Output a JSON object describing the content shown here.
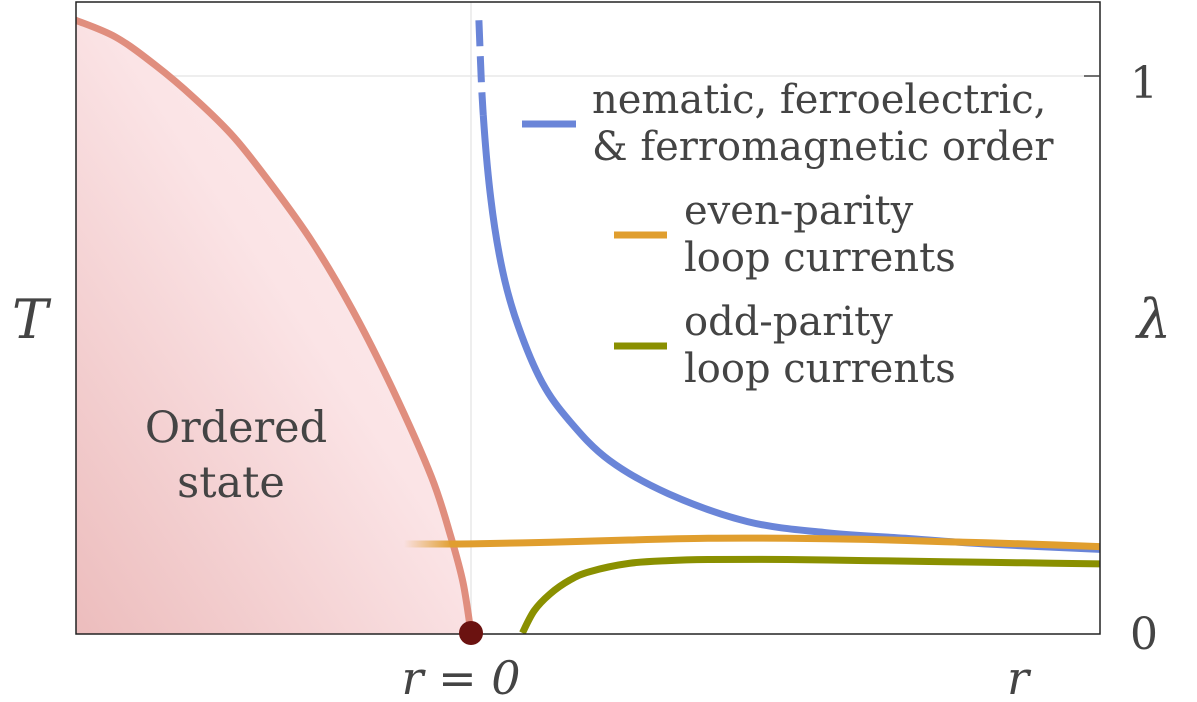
{
  "chart_data": {
    "type": "line",
    "title": "",
    "xlabel": "r",
    "ylabel_left": "T",
    "ylabel_right": "λ",
    "x_tick_labels": [
      "r = 0"
    ],
    "y_right_ticks": [
      "0",
      "1"
    ],
    "ylim_right": [
      0,
      1
    ],
    "xlim": [
      -1.0,
      1.6
    ],
    "region": {
      "label_line1": "Ordered",
      "label_line2": "state",
      "boundary_color": "#e08e7e",
      "fill_color": "#f6d4d4",
      "critical_point": {
        "x": 0,
        "y": 0,
        "color": "#6b1210"
      }
    },
    "series": [
      {
        "id": "nematic",
        "legend_line1": "nematic, ferroelectric,",
        "legend_line2": "& ferromagnetic order",
        "color": "#6a85d8",
        "x": [
          0.02,
          0.03,
          0.05,
          0.08,
          0.12,
          0.18,
          0.25,
          0.35,
          0.5,
          0.7,
          0.9,
          1.1,
          1.3,
          1.6
        ],
        "y": [
          1.1,
          0.94,
          0.78,
          0.65,
          0.55,
          0.45,
          0.38,
          0.31,
          0.25,
          0.2,
          0.18,
          0.17,
          0.16,
          0.15
        ]
      },
      {
        "id": "even",
        "legend_line1": "even-parity",
        "legend_line2": "loop currents",
        "color": "#e09e2e",
        "x": [
          -0.17,
          0.0,
          0.2,
          0.4,
          0.6,
          0.8,
          1.0,
          1.2,
          1.4,
          1.6
        ],
        "y": [
          0.16,
          0.16,
          0.163,
          0.167,
          0.17,
          0.17,
          0.168,
          0.164,
          0.16,
          0.155
        ]
      },
      {
        "id": "odd",
        "legend_line1": "odd-parity",
        "legend_line2": "loop currents",
        "color": "#8a9000",
        "x": [
          0.13,
          0.16,
          0.2,
          0.25,
          0.3,
          0.4,
          0.5,
          0.6,
          0.8,
          1.0,
          1.2,
          1.4,
          1.6
        ],
        "y": [
          0.0,
          0.04,
          0.07,
          0.095,
          0.11,
          0.125,
          0.13,
          0.132,
          0.132,
          0.13,
          0.128,
          0.126,
          0.124
        ]
      }
    ],
    "boundary": {
      "x": [
        -1.0,
        -0.9,
        -0.8,
        -0.7,
        -0.6,
        -0.5,
        -0.4,
        -0.3,
        -0.2,
        -0.1,
        -0.05,
        -0.02,
        0.0
      ],
      "y": [
        1.1,
        1.07,
        1.02,
        0.96,
        0.89,
        0.8,
        0.7,
        0.58,
        0.44,
        0.28,
        0.17,
        0.09,
        0.0
      ]
    }
  }
}
